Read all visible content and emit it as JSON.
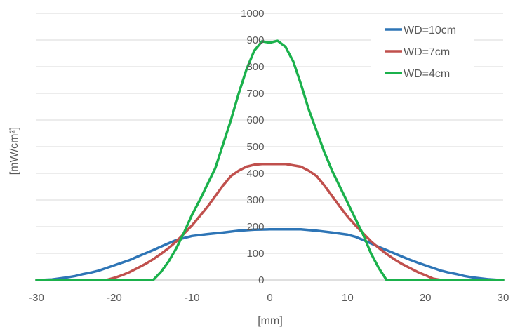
{
  "chart_data": {
    "type": "line",
    "title": "",
    "xlabel": "[mm]",
    "ylabel": "[mW/cm²]",
    "xlim": [
      -30,
      30
    ],
    "ylim": [
      0,
      1000
    ],
    "x_ticks": [
      -30,
      -20,
      -10,
      0,
      10,
      20,
      30
    ],
    "y_ticks": [
      0,
      100,
      200,
      300,
      400,
      500,
      600,
      700,
      800,
      900,
      1000
    ],
    "grid": "horizontal",
    "legend": "top-right",
    "series": [
      {
        "name": "WD=10cm",
        "color": "#2E75B6",
        "points": [
          [
            -29.5,
            0
          ],
          [
            -28,
            2
          ],
          [
            -26,
            10
          ],
          [
            -25,
            15
          ],
          [
            -24,
            22
          ],
          [
            -23,
            28
          ],
          [
            -22,
            35
          ],
          [
            -21,
            45
          ],
          [
            -20,
            55
          ],
          [
            -19,
            65
          ],
          [
            -18,
            75
          ],
          [
            -17,
            88
          ],
          [
            -16,
            100
          ],
          [
            -15,
            112
          ],
          [
            -14,
            125
          ],
          [
            -13,
            138
          ],
          [
            -12,
            150
          ],
          [
            -10,
            165
          ],
          [
            -8,
            172
          ],
          [
            -6,
            178
          ],
          [
            -4,
            185
          ],
          [
            -2,
            189
          ],
          [
            0,
            190
          ],
          [
            2,
            190
          ],
          [
            4,
            190
          ],
          [
            6,
            185
          ],
          [
            8,
            178
          ],
          [
            10,
            170
          ],
          [
            11,
            162
          ],
          [
            12,
            150
          ],
          [
            13,
            137
          ],
          [
            14,
            124
          ],
          [
            15,
            112
          ],
          [
            16,
            100
          ],
          [
            17,
            88
          ],
          [
            18,
            76
          ],
          [
            19,
            65
          ],
          [
            20,
            55
          ],
          [
            21,
            45
          ],
          [
            22,
            35
          ],
          [
            23,
            28
          ],
          [
            24,
            22
          ],
          [
            25,
            15
          ],
          [
            26,
            10
          ],
          [
            28,
            3
          ],
          [
            29.5,
            0
          ]
        ]
      },
      {
        "name": "WD=7cm",
        "color": "#C0504D",
        "points": [
          [
            -30,
            0
          ],
          [
            -21,
            0
          ],
          [
            -20,
            8
          ],
          [
            -19,
            18
          ],
          [
            -18,
            30
          ],
          [
            -17,
            45
          ],
          [
            -16,
            60
          ],
          [
            -15,
            78
          ],
          [
            -14,
            98
          ],
          [
            -13,
            120
          ],
          [
            -12,
            145
          ],
          [
            -11,
            175
          ],
          [
            -10,
            205
          ],
          [
            -9,
            240
          ],
          [
            -8,
            275
          ],
          [
            -7,
            315
          ],
          [
            -6,
            355
          ],
          [
            -5,
            390
          ],
          [
            -4,
            410
          ],
          [
            -3,
            425
          ],
          [
            -2,
            432
          ],
          [
            -1,
            435
          ],
          [
            0,
            435
          ],
          [
            1,
            435
          ],
          [
            2,
            435
          ],
          [
            3,
            430
          ],
          [
            4,
            425
          ],
          [
            5,
            410
          ],
          [
            6,
            390
          ],
          [
            7,
            355
          ],
          [
            8,
            315
          ],
          [
            9,
            275
          ],
          [
            10,
            238
          ],
          [
            11,
            205
          ],
          [
            12,
            175
          ],
          [
            13,
            145
          ],
          [
            14,
            120
          ],
          [
            15,
            98
          ],
          [
            16,
            78
          ],
          [
            17,
            60
          ],
          [
            18,
            45
          ],
          [
            19,
            30
          ],
          [
            20,
            18
          ],
          [
            21,
            5
          ],
          [
            22,
            0
          ],
          [
            30,
            0
          ]
        ]
      },
      {
        "name": "WD=4cm",
        "color": "#1BB14C",
        "points": [
          [
            -30,
            0
          ],
          [
            -15,
            0
          ],
          [
            -14,
            30
          ],
          [
            -13,
            70
          ],
          [
            -12,
            120
          ],
          [
            -11,
            180
          ],
          [
            -10,
            245
          ],
          [
            -9,
            300
          ],
          [
            -8,
            360
          ],
          [
            -7,
            420
          ],
          [
            -6,
            510
          ],
          [
            -5,
            600
          ],
          [
            -4,
            700
          ],
          [
            -3,
            790
          ],
          [
            -2,
            860
          ],
          [
            -1,
            895
          ],
          [
            0,
            890
          ],
          [
            1,
            897
          ],
          [
            2,
            875
          ],
          [
            3,
            820
          ],
          [
            4,
            735
          ],
          [
            5,
            640
          ],
          [
            6,
            560
          ],
          [
            7,
            480
          ],
          [
            8,
            410
          ],
          [
            9,
            350
          ],
          [
            10,
            290
          ],
          [
            11,
            230
          ],
          [
            12,
            170
          ],
          [
            13,
            100
          ],
          [
            14,
            45
          ],
          [
            15,
            0
          ],
          [
            30,
            0
          ]
        ]
      }
    ]
  }
}
